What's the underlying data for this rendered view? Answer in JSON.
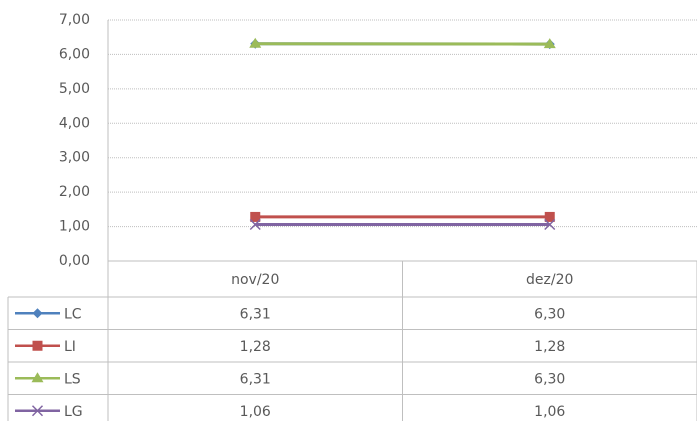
{
  "chart_data": {
    "type": "line",
    "categories": [
      "nov/20",
      "dez/20"
    ],
    "series": [
      {
        "name": "LC",
        "color": "#4f81bd",
        "marker": "diamond",
        "values": [
          6.31,
          6.3
        ],
        "value_labels": [
          "6,31",
          "6,30"
        ]
      },
      {
        "name": "LI",
        "color": "#c0504d",
        "marker": "square",
        "values": [
          1.28,
          1.28
        ],
        "value_labels": [
          "1,28",
          "1,28"
        ]
      },
      {
        "name": "LS",
        "color": "#9bbb59",
        "marker": "triangle",
        "values": [
          6.31,
          6.3
        ],
        "value_labels": [
          "6,31",
          "6,30"
        ]
      },
      {
        "name": "LG",
        "color": "#8064a2",
        "marker": "x",
        "values": [
          1.06,
          1.06
        ],
        "value_labels": [
          "1,06",
          "1,06"
        ]
      }
    ],
    "ylim": [
      0,
      7
    ],
    "yticks": [
      {
        "value": 0,
        "label": "0,00"
      },
      {
        "value": 1,
        "label": "1,00"
      },
      {
        "value": 2,
        "label": "2,00"
      },
      {
        "value": 3,
        "label": "3,00"
      },
      {
        "value": 4,
        "label": "4,00"
      },
      {
        "value": 5,
        "label": "5,00"
      },
      {
        "value": 6,
        "label": "6,00"
      },
      {
        "value": 7,
        "label": "7,00"
      }
    ],
    "grid": true
  }
}
